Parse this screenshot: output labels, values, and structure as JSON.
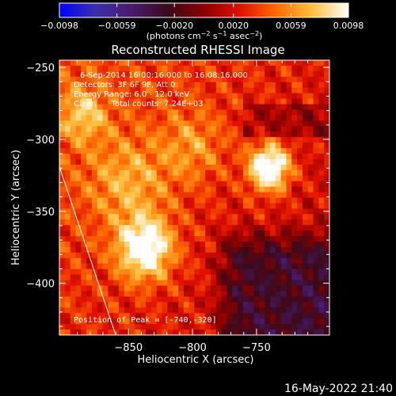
{
  "chart_data": {
    "type": "heatmap",
    "title": "Reconstructed RHESSI Image",
    "xlabel": "Heliocentric X (arcsec)",
    "ylabel": "Heliocentric Y (arcsec)",
    "xlim": [
      -904,
      -693
    ],
    "ylim": [
      -436,
      -245
    ],
    "x_ticks": [
      -850,
      -800,
      -750
    ],
    "x_tick_labels": [
      "−850",
      "−800",
      "−750"
    ],
    "y_ticks": [
      -250,
      -300,
      -350,
      -400
    ],
    "y_tick_labels": [
      "−250",
      "−300",
      "−350",
      "−400"
    ],
    "colorbar": {
      "min": -0.0098,
      "max": 0.0098,
      "ticks": [
        -0.0098,
        -0.0059,
        -0.002,
        0.002,
        0.0059,
        0.0098
      ],
      "tick_labels": [
        "−0.0098",
        "−0.0059",
        "−0.0020",
        "0.0020",
        "0.0059",
        "0.0098"
      ],
      "unit_parts": [
        "(photons cm",
        "−2",
        " s",
        "−1",
        " asec",
        "−2",
        ")"
      ]
    },
    "annotations": [
      "6-Sep-2014 16:00:16.000 to 16:08:16.000",
      "Detectors: 3F 6F 9F, Att 0",
      "Energy Range: 6.0 - 12.0 keV",
      "Clean      Total counts: 7.24E+03"
    ],
    "peak_label": "Position of Peak = [-740,-320]",
    "peak_position": [
      -740,
      -320
    ],
    "limb_line": [
      [
        -904,
        -319
      ],
      [
        -860,
        -436
      ]
    ],
    "bright_sources": [
      {
        "x": -740,
        "y": -320,
        "amplitude": 0.0098,
        "sigma": 11
      },
      {
        "x": -837,
        "y": -376,
        "amplitude": 0.0085,
        "sigma": 15
      },
      {
        "x": -885,
        "y": -283,
        "amplitude": 0.004,
        "sigma": 13
      },
      {
        "x": -850,
        "y": -330,
        "amplitude": 0.0035,
        "sigma": 22
      },
      {
        "x": -800,
        "y": -305,
        "amplitude": 0.003,
        "sigma": 18
      }
    ],
    "colors": {
      "colormap": [
        "#0000ff",
        "#3b2fa8",
        "#4a1a6e",
        "#3a0a1a",
        "#8a0000",
        "#e01000",
        "#ff6a00",
        "#ffc040",
        "#ffffff"
      ],
      "axes": "#ffffff",
      "background": "#000000"
    }
  },
  "timestamp": "16-May-2022 21:40"
}
